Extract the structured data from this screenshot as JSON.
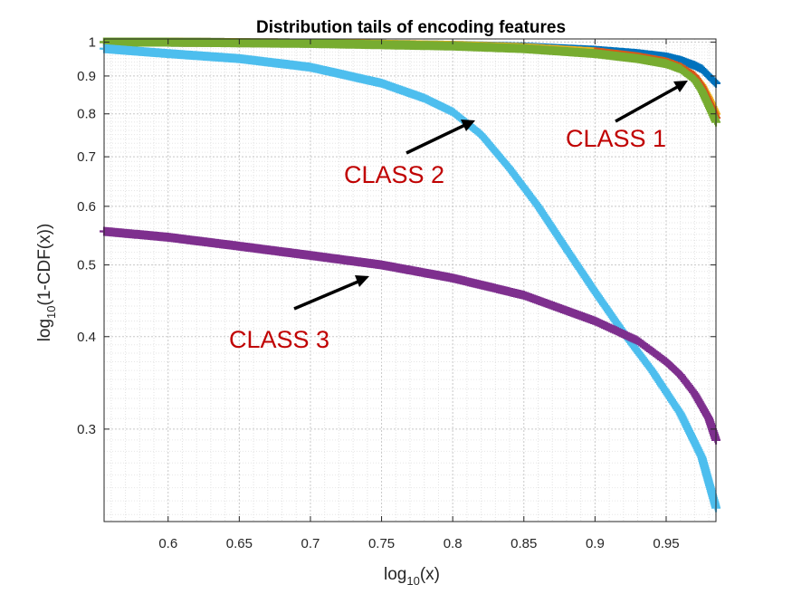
{
  "chart_data": {
    "type": "line",
    "title": "Distribution tails of encoding features",
    "xlabel": {
      "base": "log",
      "sub": "10",
      "rest": "(x)"
    },
    "ylabel": {
      "base": "log",
      "sub": "10",
      "rest": "(1-CDF(x))"
    },
    "xlim": [
      0.555,
      0.985
    ],
    "ylim": [
      0.225,
      1.01
    ],
    "yscale": "log",
    "grid": "on (major and minor, dotted)",
    "x_ticks": [
      "0.6",
      "0.65",
      "0.7",
      "0.75",
      "0.8",
      "0.85",
      "0.9",
      "0.95"
    ],
    "x_tick_values": [
      0.6,
      0.65,
      0.7,
      0.75,
      0.8,
      0.85,
      0.9,
      0.95
    ],
    "y_ticks": [
      "0.3",
      "0.4",
      "0.5",
      "0.6",
      "0.7",
      "0.8",
      "0.9",
      "1"
    ],
    "y_tick_values": [
      0.3,
      0.4,
      0.5,
      0.6,
      0.7,
      0.8,
      0.9,
      1.0
    ],
    "series": [
      {
        "color": "#0072BD",
        "marker": "+",
        "x": [
          0.555,
          0.6,
          0.7,
          0.8,
          0.85,
          0.9,
          0.93,
          0.95,
          0.96,
          0.97,
          0.975,
          0.98,
          0.985
        ],
        "y": [
          1.0,
          1.0,
          0.997,
          0.99,
          0.985,
          0.975,
          0.965,
          0.955,
          0.945,
          0.93,
          0.92,
          0.9,
          0.88
        ]
      },
      {
        "color": "#EDB120",
        "marker": "+",
        "x": [
          0.555,
          0.6,
          0.7,
          0.8,
          0.85,
          0.9,
          0.93,
          0.95,
          0.96,
          0.97,
          0.975,
          0.98,
          0.985
        ],
        "y": [
          1.0,
          1.0,
          0.997,
          0.99,
          0.983,
          0.97,
          0.955,
          0.94,
          0.925,
          0.9,
          0.875,
          0.84,
          0.8
        ]
      },
      {
        "color": "#D95319",
        "marker": "+",
        "x": [
          0.9,
          0.93,
          0.95,
          0.96,
          0.97,
          0.975,
          0.98,
          0.985
        ],
        "y": [
          0.97,
          0.955,
          0.94,
          0.925,
          0.9,
          0.87,
          0.83,
          0.79
        ]
      },
      {
        "color": "#77AC30",
        "marker": "+",
        "x": [
          0.555,
          0.6,
          0.7,
          0.8,
          0.85,
          0.9,
          0.93,
          0.95,
          0.96,
          0.97,
          0.975,
          0.98,
          0.985
        ],
        "y": [
          1.0,
          1.0,
          0.996,
          0.988,
          0.98,
          0.965,
          0.95,
          0.935,
          0.92,
          0.89,
          0.86,
          0.82,
          0.78
        ]
      },
      {
        "color": "#4DBEEE",
        "marker": "+",
        "x": [
          0.555,
          0.6,
          0.65,
          0.7,
          0.75,
          0.78,
          0.8,
          0.82,
          0.84,
          0.86,
          0.88,
          0.9,
          0.92,
          0.94,
          0.96,
          0.975,
          0.985
        ],
        "y": [
          0.98,
          0.965,
          0.95,
          0.925,
          0.88,
          0.84,
          0.805,
          0.75,
          0.675,
          0.6,
          0.525,
          0.46,
          0.405,
          0.36,
          0.315,
          0.275,
          0.235
        ]
      },
      {
        "color": "#7E2F8E",
        "marker": "+",
        "x": [
          0.555,
          0.6,
          0.65,
          0.7,
          0.75,
          0.8,
          0.85,
          0.9,
          0.93,
          0.95,
          0.96,
          0.97,
          0.98,
          0.985
        ],
        "y": [
          0.555,
          0.545,
          0.53,
          0.515,
          0.5,
          0.48,
          0.455,
          0.42,
          0.395,
          0.37,
          0.355,
          0.335,
          0.31,
          0.29
        ]
      }
    ],
    "annotations": [
      {
        "text": "CLASS 1",
        "arrow_to": [
          0.965,
          0.925
        ]
      },
      {
        "text": "CLASS 2",
        "arrow_to": [
          0.795,
          0.81
        ]
      },
      {
        "text": "CLASS 3",
        "arrow_to": [
          0.72,
          0.5
        ]
      }
    ]
  }
}
